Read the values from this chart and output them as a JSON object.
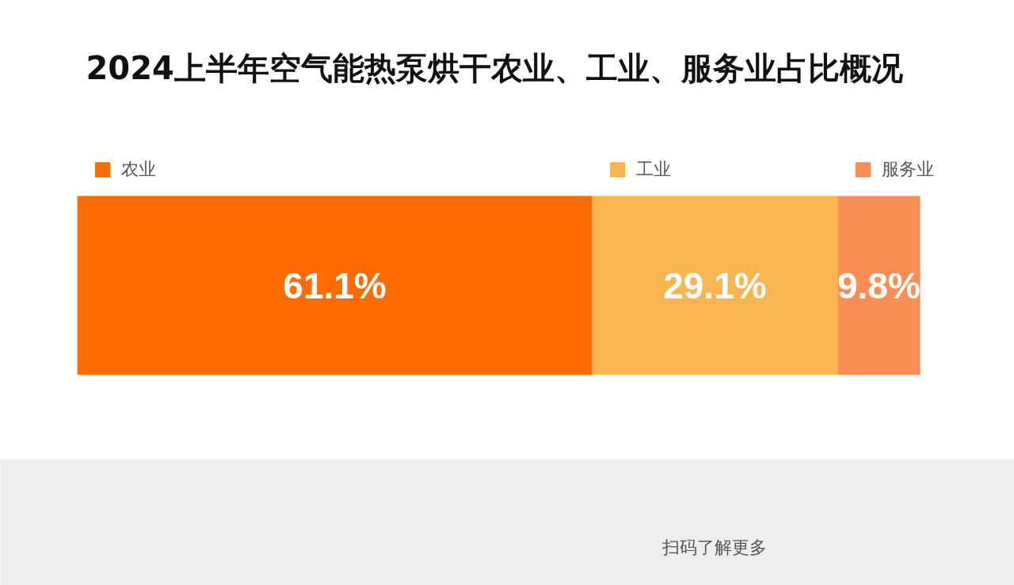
{
  "chart_data": {
    "type": "bar",
    "orientation": "horizontal",
    "stacked": true,
    "title": "2024上半年空气能热泵烘干农业、工业、服务业占比概况",
    "categories": [
      null
    ],
    "series": [
      {
        "name": "农业",
        "color": "#ff6d00",
        "values": [
          61.1
        ],
        "value_labels": [
          "61.1%"
        ]
      },
      {
        "name": "工业",
        "color": "#f9b551",
        "values": [
          29.1
        ],
        "value_labels": [
          "29.1%"
        ]
      },
      {
        "name": "服务业",
        "color": "#fc8d55",
        "values": [
          9.8
        ],
        "value_labels": [
          "9.8%"
        ]
      }
    ],
    "legend": "top",
    "tick_labels": false,
    "annotations": [
      "扫码了解更多"
    ]
  }
}
